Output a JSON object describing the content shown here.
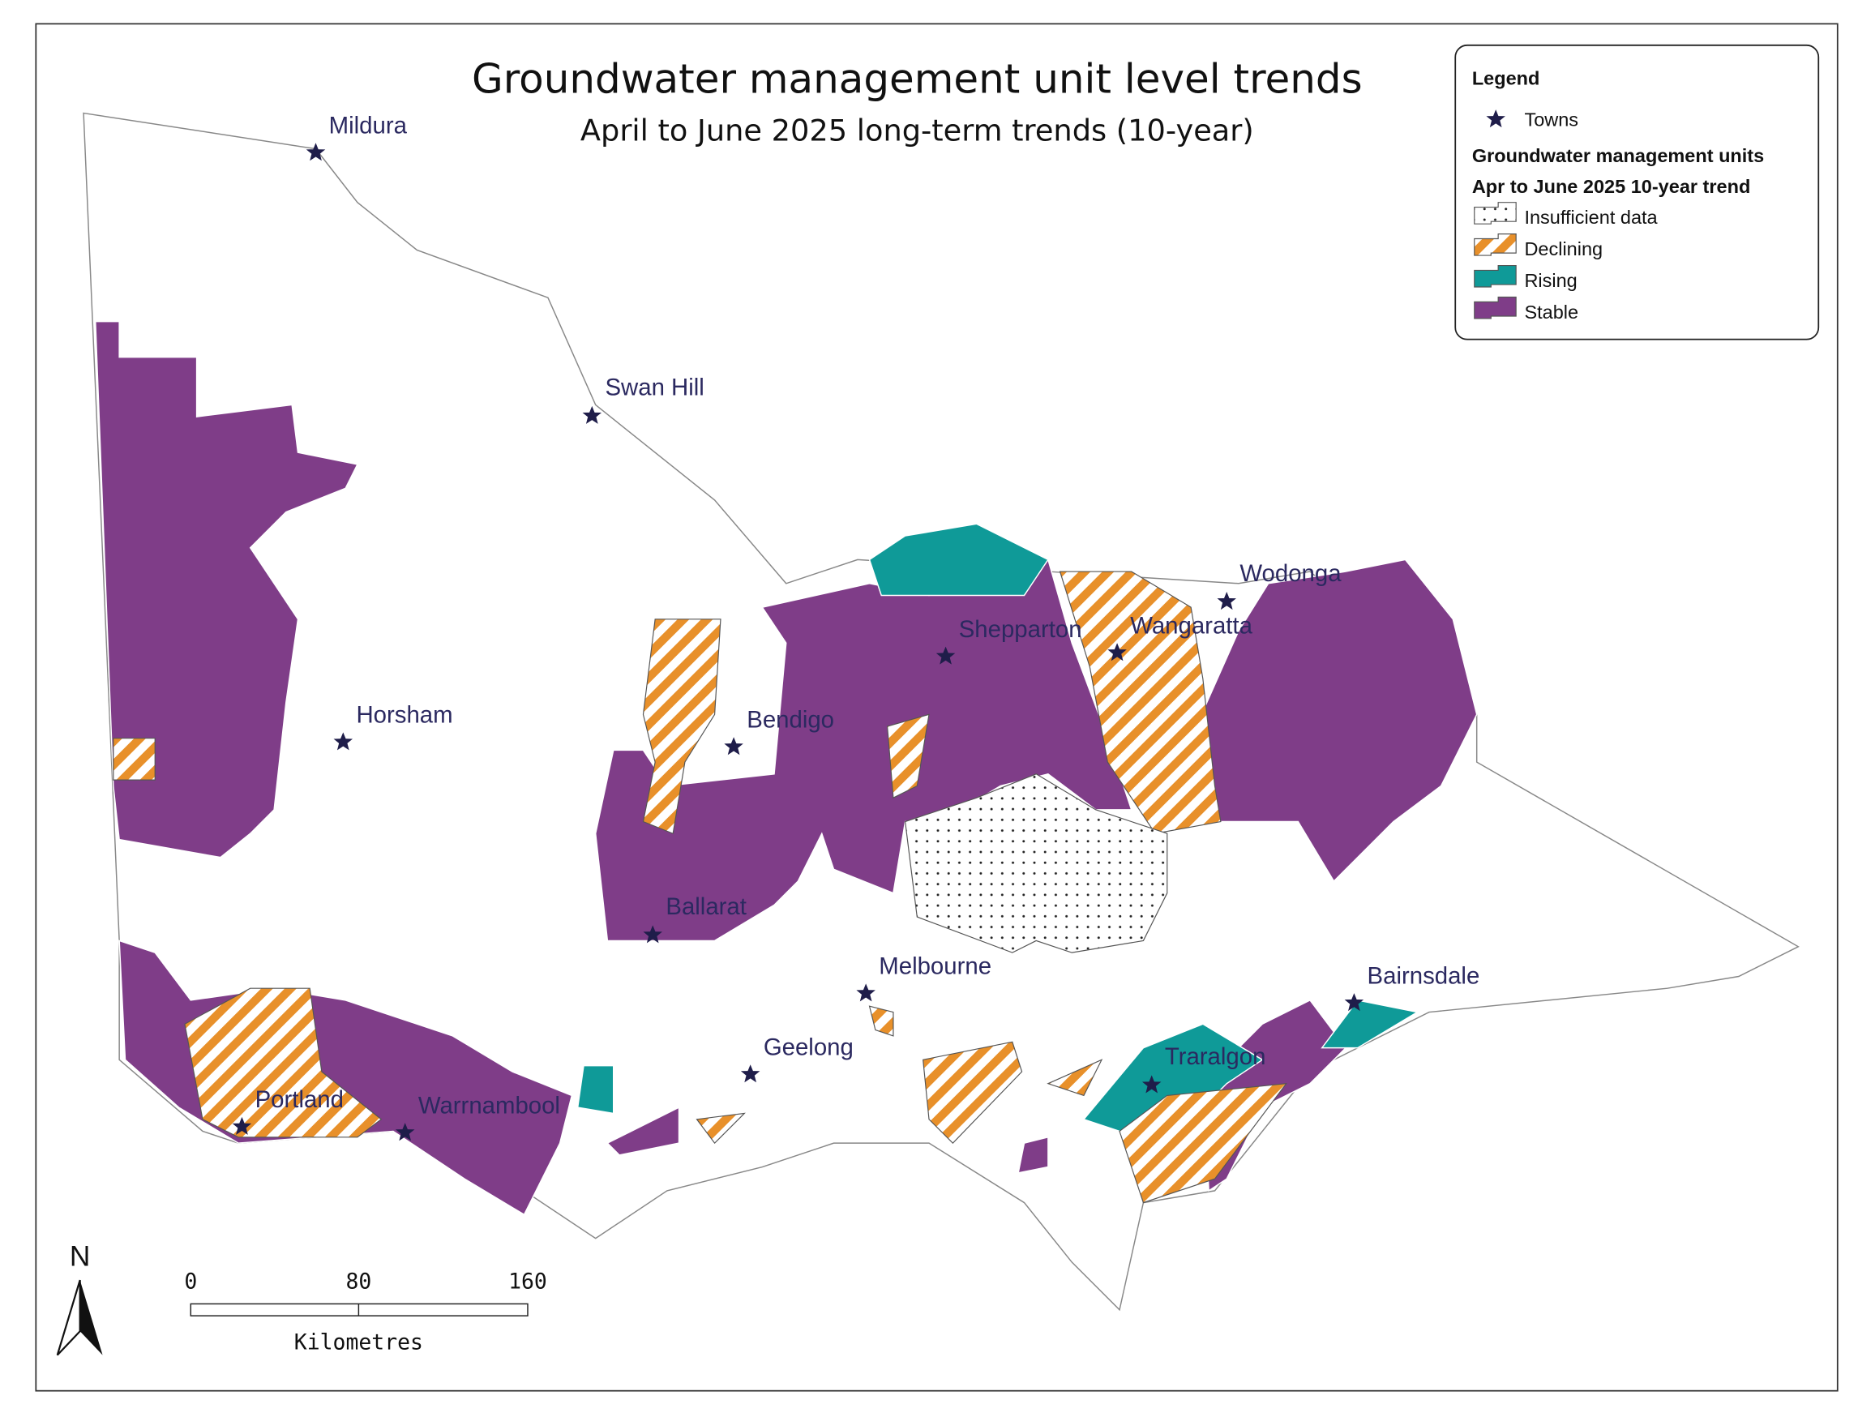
{
  "title": "Groundwater management unit level trends",
  "subtitle": "April to June 2025 long-term trends (10-year)",
  "legend": {
    "title": "Legend",
    "towns": "Towns",
    "heading": "Groundwater management units",
    "subheading": "Apr to June 2025 10-year trend",
    "items": [
      "Insufficient data",
      "Declining",
      "Rising",
      "Stable"
    ]
  },
  "towns": [
    "Mildura",
    "Swan Hill",
    "Horsham",
    "Bendigo",
    "Shepparton",
    "Wangaratta",
    "Wodonga",
    "Ballarat",
    "Melbourne",
    "Geelong",
    "Bairnsdale",
    "Traralgon",
    "Portland",
    "Warrnambool"
  ],
  "scale": {
    "ticks": [
      "0",
      "80",
      "160"
    ],
    "unit": "Kilometres"
  },
  "north": "N"
}
